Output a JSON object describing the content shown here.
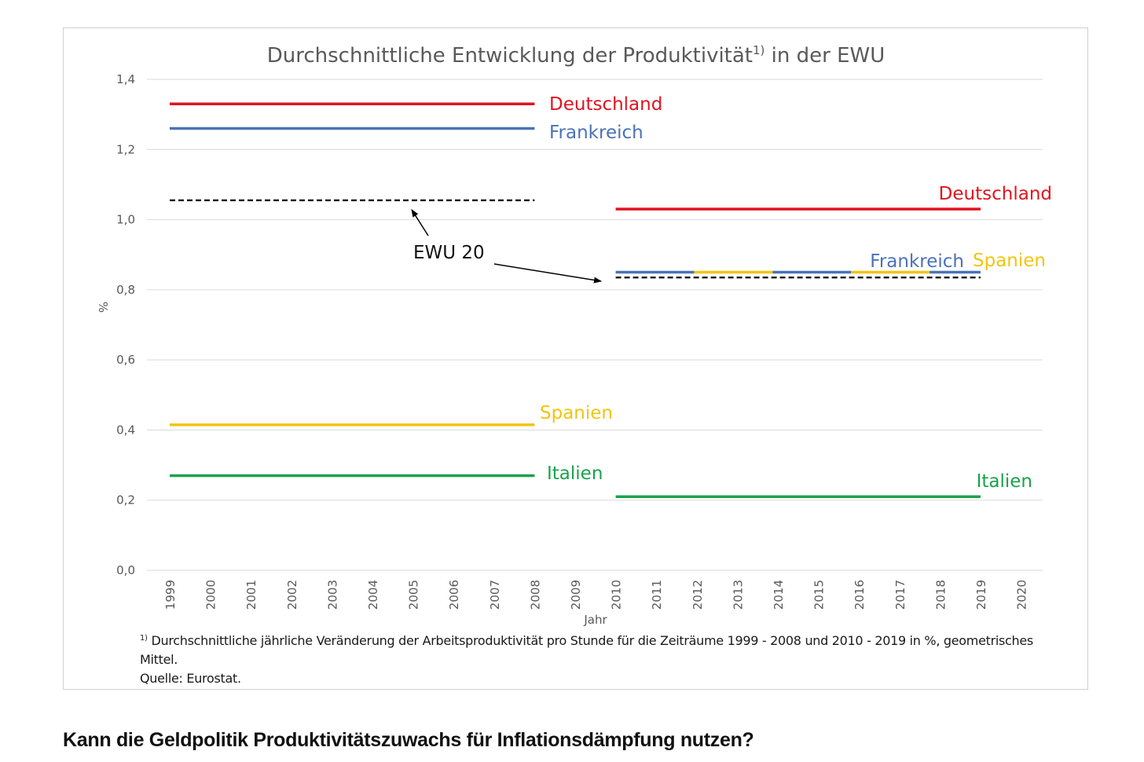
{
  "chart_data": {
    "type": "line",
    "title": "Durchschnittliche Entwicklung der Produktivität",
    "title_superscript": "1)",
    "title_suffix": "in der EWU",
    "xlabel": "Jahr",
    "ylabel": "%",
    "ylim": [
      0,
      1.4
    ],
    "yticks": [
      "0,0",
      "0,2",
      "0,4",
      "0,6",
      "0,8",
      "1,0",
      "1,2",
      "1,4"
    ],
    "ytick_values": [
      0,
      0.2,
      0.4,
      0.6,
      0.8,
      1.0,
      1.2,
      1.4
    ],
    "x_categories": [
      "1999",
      "2000",
      "2001",
      "2002",
      "2003",
      "2004",
      "2005",
      "2006",
      "2007",
      "2008",
      "2009",
      "2010",
      "2011",
      "2012",
      "2013",
      "2014",
      "2015",
      "2016",
      "2017",
      "2018",
      "2019",
      "2020"
    ],
    "grid": "horizontal",
    "legend": "none",
    "periods": [
      "1999 - 2008",
      "2010 - 2019"
    ],
    "series": [
      {
        "name": "Deutschland",
        "color": "#e0141f",
        "segments": [
          {
            "x_start": "1999",
            "x_end": "2008",
            "value": 1.33
          },
          {
            "x_start": "2010",
            "x_end": "2019",
            "value": 1.03
          }
        ]
      },
      {
        "name": "Frankreich",
        "color": "#4a72b8",
        "segments": [
          {
            "x_start": "1999",
            "x_end": "2008",
            "value": 1.26
          },
          {
            "x_start": "2010",
            "x_end": "2019",
            "value": 0.85
          }
        ]
      },
      {
        "name": "Spanien",
        "color": "#f2c40f",
        "segments": [
          {
            "x_start": "1999",
            "x_end": "2008",
            "value": 0.415
          },
          {
            "x_start": "2010",
            "x_end": "2019",
            "value": 0.85
          }
        ]
      },
      {
        "name": "Italien",
        "color": "#1aa34a",
        "segments": [
          {
            "x_start": "1999",
            "x_end": "2008",
            "value": 0.27
          },
          {
            "x_start": "2010",
            "x_end": "2019",
            "value": 0.21
          }
        ]
      },
      {
        "name": "EWU 20",
        "color": "#000000",
        "style": "dashed",
        "segments": [
          {
            "x_start": "1999",
            "x_end": "2008",
            "value": 1.055
          },
          {
            "x_start": "2010",
            "x_end": "2019",
            "value": 0.835
          }
        ]
      }
    ],
    "annotation": "EWU 20",
    "footnote": {
      "marker": "1)",
      "text": "Durchschnittliche jährliche Veränderung der Arbeitsproduktivität pro Stunde für die Zeiträume 1999 - 2008 und 2010 - 2019 in %, geometrisches Mittel.",
      "source": "Quelle: Eurostat."
    }
  },
  "article": {
    "heading": "Kann die Geldpolitik Produktivitätszuwachs für Inflationsdämpfung nutzen?"
  }
}
